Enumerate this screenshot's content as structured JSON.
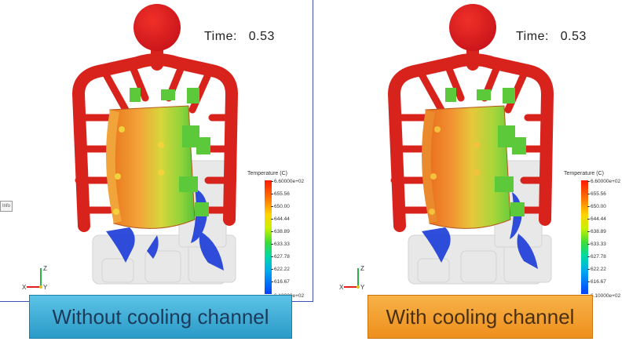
{
  "left_panel": {
    "time_label": "Time:",
    "time_value": "0.53",
    "legend": {
      "title": "Temperature (C)",
      "ticks": [
        "6.60000e+02",
        "655.56",
        "650.00",
        "644.44",
        "638.89",
        "633.33",
        "627.78",
        "622.22",
        "616.67",
        "6.10000e+02"
      ]
    },
    "axes": {
      "x": "X",
      "y": "Y",
      "z": "Z"
    },
    "side_tab": "Info",
    "caption": "Without cooling channel"
  },
  "right_panel": {
    "time_label": "Time:",
    "time_value": "0.53",
    "legend": {
      "title": "Temperature (C)",
      "ticks": [
        "6.60000e+02",
        "655.56",
        "650.00",
        "644.44",
        "638.89",
        "633.33",
        "627.78",
        "622.22",
        "616.67",
        "6.10000e+02"
      ]
    },
    "axes": {
      "x": "X",
      "y": "Y",
      "z": "Z"
    },
    "caption": "With cooling channel"
  },
  "colors": {
    "hot": "#e0221d",
    "warm": "#f08a1f",
    "mid": "#c9e22b",
    "cool": "#2ab84a",
    "cold": "#1a3bd8",
    "left_caption_bg": "#3aaed8",
    "right_caption_bg": "#f3a034"
  }
}
